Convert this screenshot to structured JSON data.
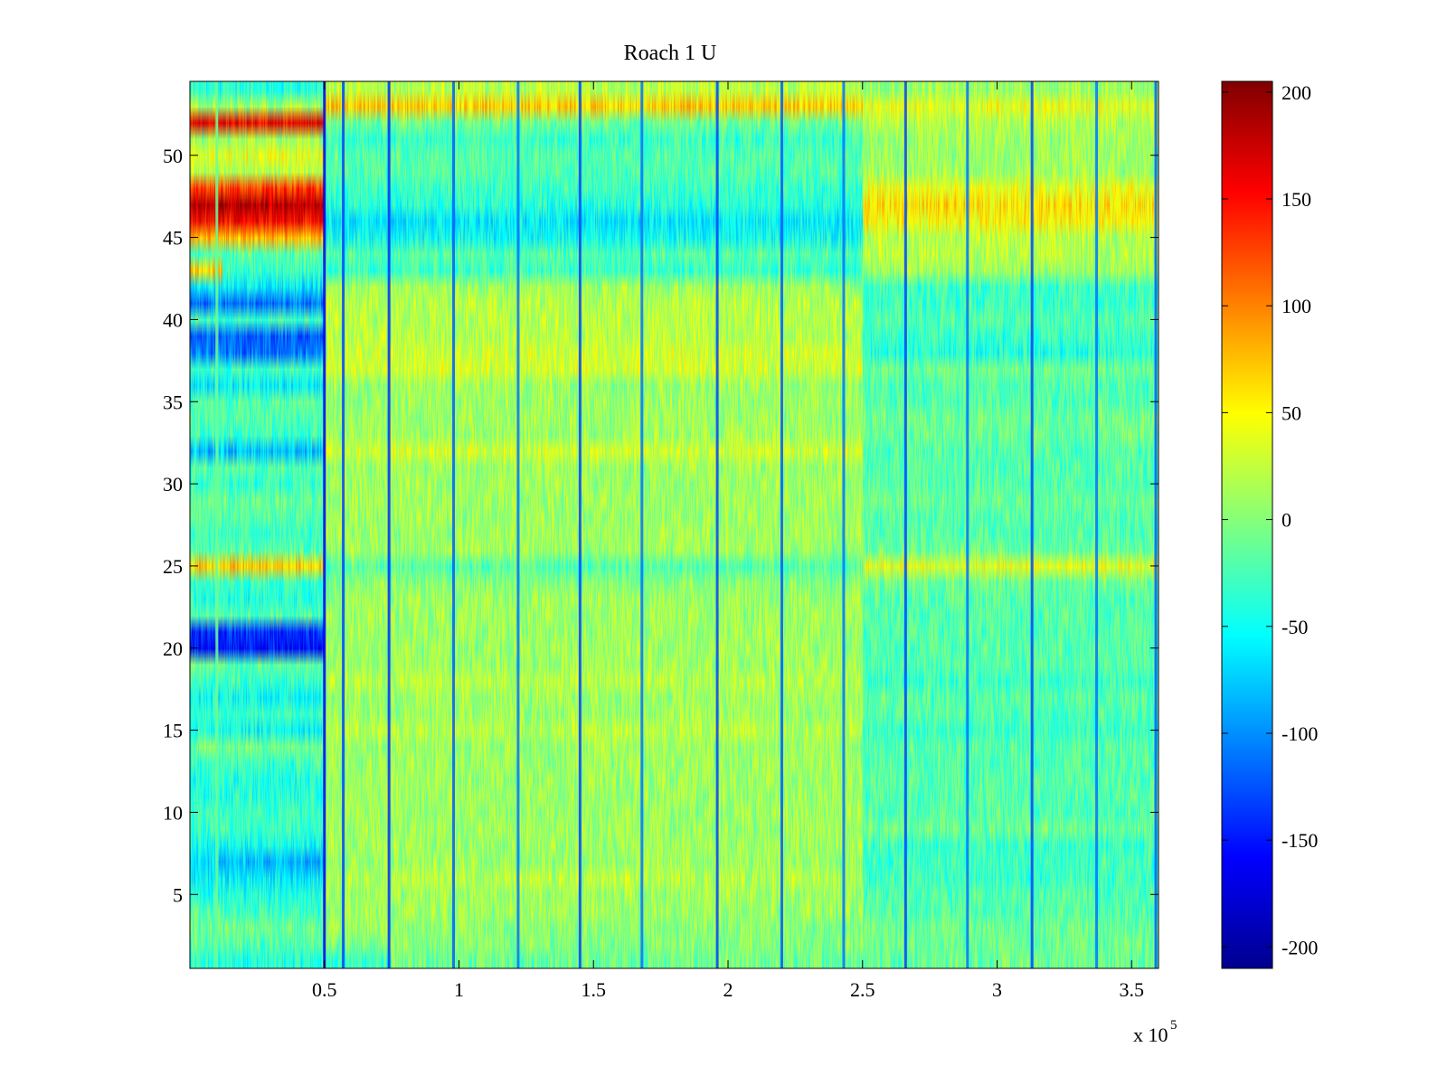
{
  "chart_data": {
    "type": "heatmap",
    "title": "Roach 1 U",
    "xlabel": "",
    "ylabel": "",
    "x_range": [
      0,
      360000
    ],
    "y_range": [
      0.5,
      54.5
    ],
    "x_ticks": [
      50000,
      100000,
      150000,
      200000,
      250000,
      300000,
      350000
    ],
    "x_tick_labels": [
      "0.5",
      "1",
      "1.5",
      "2",
      "2.5",
      "3",
      "3.5"
    ],
    "x_exponent_label": "x 10",
    "x_exponent_power": "5",
    "y_ticks": [
      5,
      10,
      15,
      20,
      25,
      30,
      35,
      40,
      45,
      50
    ],
    "y_tick_labels": [
      "5",
      "10",
      "15",
      "20",
      "25",
      "30",
      "35",
      "40",
      "45",
      "50"
    ],
    "n_rows": 54,
    "colorbar": {
      "range": [
        -210,
        205
      ],
      "ticks": [
        200,
        150,
        100,
        50,
        0,
        -50,
        -100,
        -150,
        -200
      ],
      "tick_labels": [
        "200",
        "150",
        "100",
        "50",
        "0",
        "-50",
        "-100",
        "-150",
        "-200"
      ],
      "colormap": "jet"
    },
    "time_segments_x": [
      0,
      12000,
      50000,
      75000,
      250000,
      360000
    ],
    "row_segment_means": [
      [
        -40,
        -40,
        -30,
        -10,
        -10
      ],
      [
        -20,
        -20,
        0,
        0,
        -10
      ],
      [
        -10,
        -10,
        10,
        0,
        -10
      ],
      [
        -20,
        -30,
        10,
        10,
        -20
      ],
      [
        -40,
        -40,
        10,
        10,
        -20
      ],
      [
        -60,
        -60,
        20,
        20,
        -30
      ],
      [
        -70,
        -80,
        10,
        10,
        -30
      ],
      [
        -50,
        -50,
        10,
        10,
        -30
      ],
      [
        -30,
        -30,
        10,
        10,
        -10
      ],
      [
        -30,
        -30,
        10,
        10,
        -20
      ],
      [
        -40,
        -40,
        10,
        10,
        -20
      ],
      [
        -40,
        -40,
        10,
        10,
        -20
      ],
      [
        -30,
        -30,
        10,
        10,
        -20
      ],
      [
        -10,
        -10,
        10,
        10,
        -20
      ],
      [
        -40,
        -50,
        20,
        20,
        -30
      ],
      [
        -30,
        -30,
        10,
        10,
        -20
      ],
      [
        -50,
        -50,
        10,
        10,
        -20
      ],
      [
        -30,
        -30,
        20,
        20,
        -30
      ],
      [
        -10,
        -20,
        10,
        10,
        -20
      ],
      [
        -150,
        -150,
        10,
        10,
        -20
      ],
      [
        -140,
        -140,
        10,
        10,
        -20
      ],
      [
        -20,
        -20,
        10,
        10,
        -20
      ],
      [
        -40,
        -40,
        10,
        10,
        -20
      ],
      [
        -30,
        -30,
        0,
        0,
        -10
      ],
      [
        70,
        70,
        -20,
        -20,
        40
      ],
      [
        -20,
        -20,
        10,
        10,
        -10
      ],
      [
        -30,
        -30,
        10,
        10,
        -20
      ],
      [
        -20,
        -20,
        10,
        10,
        -20
      ],
      [
        -10,
        -10,
        10,
        10,
        -10
      ],
      [
        -30,
        -30,
        10,
        10,
        -20
      ],
      [
        -20,
        -20,
        10,
        10,
        -20
      ],
      [
        -80,
        -80,
        30,
        30,
        -20
      ],
      [
        -30,
        -30,
        10,
        10,
        -10
      ],
      [
        -20,
        -20,
        10,
        10,
        -10
      ],
      [
        -20,
        -20,
        10,
        10,
        -20
      ],
      [
        -60,
        -60,
        10,
        10,
        -20
      ],
      [
        -30,
        -30,
        30,
        30,
        -10
      ],
      [
        -110,
        -110,
        30,
        30,
        -40
      ],
      [
        -120,
        -120,
        20,
        20,
        -30
      ],
      [
        -30,
        -30,
        20,
        20,
        -20
      ],
      [
        -110,
        -110,
        20,
        20,
        -30
      ],
      [
        -60,
        -60,
        10,
        10,
        -30
      ],
      [
        70,
        -30,
        -30,
        -30,
        10
      ],
      [
        -20,
        -20,
        -20,
        -20,
        20
      ],
      [
        80,
        80,
        -50,
        -50,
        20
      ],
      [
        150,
        150,
        -60,
        -60,
        50
      ],
      [
        180,
        180,
        -40,
        -40,
        60
      ],
      [
        130,
        130,
        -30,
        -30,
        40
      ],
      [
        20,
        20,
        -20,
        -20,
        10
      ],
      [
        40,
        40,
        -20,
        -20,
        10
      ],
      [
        10,
        10,
        -30,
        -30,
        10
      ],
      [
        160,
        160,
        -10,
        -10,
        20
      ],
      [
        10,
        10,
        70,
        70,
        40
      ],
      [
        -40,
        -40,
        20,
        20,
        10
      ]
    ],
    "vertical_events": [
      {
        "x": 10000,
        "value": -10
      },
      {
        "x": 50000,
        "value": -160
      },
      {
        "x": 57000,
        "value": -130
      },
      {
        "x": 74000,
        "value": -140
      },
      {
        "x": 98000,
        "value": -120
      },
      {
        "x": 122000,
        "value": -110
      },
      {
        "x": 145000,
        "value": -130
      },
      {
        "x": 168000,
        "value": -110
      },
      {
        "x": 196000,
        "value": -130
      },
      {
        "x": 220000,
        "value": -120
      },
      {
        "x": 243000,
        "value": -110
      },
      {
        "x": 266000,
        "value": -130
      },
      {
        "x": 289000,
        "value": -110
      },
      {
        "x": 313000,
        "value": -130
      },
      {
        "x": 337000,
        "value": -110
      },
      {
        "x": 359000,
        "value": -120
      }
    ]
  }
}
